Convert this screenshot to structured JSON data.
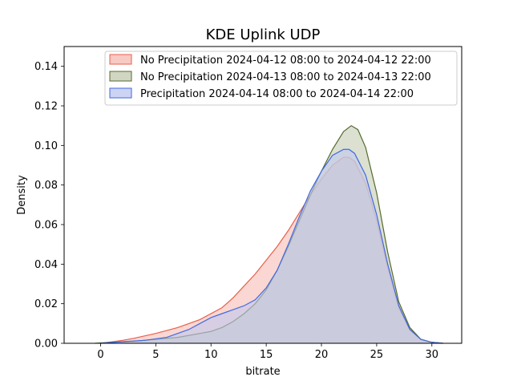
{
  "chart_data": {
    "type": "area",
    "title": "KDE Uplink UDP",
    "xlabel": "bitrate",
    "ylabel": "Density",
    "xlim": [
      -3.3,
      32.7
    ],
    "ylim": [
      0,
      0.15
    ],
    "xticks": [
      0,
      5,
      10,
      15,
      20,
      25,
      30
    ],
    "xtick_labels": [
      "0",
      "5",
      "10",
      "15",
      "20",
      "25",
      "30"
    ],
    "yticks": [
      0,
      0.02,
      0.04,
      0.06,
      0.08,
      0.1,
      0.12,
      0.14
    ],
    "ytick_labels": [
      "0.00",
      "0.02",
      "0.04",
      "0.06",
      "0.08",
      "0.10",
      "0.12",
      "0.14"
    ],
    "legend_position": "top-right",
    "series": [
      {
        "name": "No Precipitation 2024-04-12 08:00 to 2024-04-12 22:00",
        "line_color": "#e8604c",
        "fill_color": "#f7bcb4",
        "x": [
          0,
          2,
          3,
          5,
          7,
          9,
          11,
          12,
          13,
          14,
          15,
          16,
          17,
          18,
          19,
          20,
          21,
          22,
          22.5,
          23,
          24,
          25,
          26,
          27,
          28,
          29,
          30,
          31
        ],
        "y": [
          0,
          0.0015,
          0.0025,
          0.005,
          0.008,
          0.012,
          0.018,
          0.023,
          0.029,
          0.035,
          0.042,
          0.049,
          0.057,
          0.066,
          0.075,
          0.083,
          0.09,
          0.094,
          0.094,
          0.092,
          0.081,
          0.062,
          0.038,
          0.018,
          0.007,
          0.002,
          0.0005,
          0
        ]
      },
      {
        "name": "No Precipitation 2024-04-13 08:00 to 2024-04-13 22:00",
        "line_color": "#556b2f",
        "fill_color": "#c5ccb3",
        "x": [
          -0.5,
          1,
          3,
          5,
          7,
          9,
          10,
          11,
          12,
          13,
          14,
          15,
          16,
          17,
          18,
          19,
          20,
          21,
          22,
          22.7,
          23.3,
          24,
          25,
          26,
          27,
          28,
          29,
          30,
          31
        ],
        "y": [
          0,
          0.0005,
          0.001,
          0.002,
          0.003,
          0.005,
          0.006,
          0.008,
          0.011,
          0.015,
          0.02,
          0.027,
          0.037,
          0.049,
          0.062,
          0.075,
          0.087,
          0.098,
          0.107,
          0.11,
          0.108,
          0.099,
          0.076,
          0.046,
          0.021,
          0.008,
          0.002,
          0.0005,
          0
        ]
      },
      {
        "name": "Precipitation 2024-04-14 08:00 to 2024-04-14 22:00",
        "line_color": "#4169e1",
        "fill_color": "#c0c8f0",
        "x": [
          0,
          2,
          4,
          6,
          8,
          9,
          10,
          11,
          12,
          13,
          14,
          15,
          16,
          17,
          18,
          19,
          20,
          21,
          22,
          22.5,
          23,
          24,
          25,
          26,
          27,
          28,
          29,
          30,
          31
        ],
        "y": [
          0,
          0.0008,
          0.0015,
          0.003,
          0.007,
          0.01,
          0.013,
          0.015,
          0.017,
          0.019,
          0.022,
          0.028,
          0.037,
          0.05,
          0.064,
          0.077,
          0.087,
          0.095,
          0.098,
          0.098,
          0.096,
          0.085,
          0.065,
          0.04,
          0.019,
          0.007,
          0.002,
          0.0005,
          0
        ]
      }
    ]
  }
}
